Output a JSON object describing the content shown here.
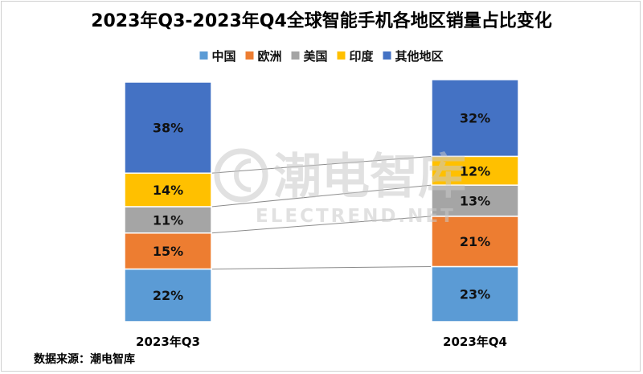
{
  "chart_data": {
    "type": "bar",
    "stacked": true,
    "title": "2023年Q3-2023年Q4全球智能手机各地区销量占比变化",
    "categories": [
      "2023年Q3",
      "2023年Q4"
    ],
    "unit": "%",
    "ylim": [
      0,
      100
    ],
    "legend_position": "top",
    "series": [
      {
        "name": "中国",
        "color": "#5b9bd5",
        "values": [
          22,
          23
        ],
        "labels": [
          "22%",
          "23%"
        ]
      },
      {
        "name": "欧洲",
        "color": "#ed7d31",
        "values": [
          15,
          21
        ],
        "labels": [
          "15%",
          "21%"
        ]
      },
      {
        "name": "美国",
        "color": "#a5a5a5",
        "values": [
          11,
          13
        ],
        "labels": [
          "11%",
          "13%"
        ]
      },
      {
        "name": "印度",
        "color": "#ffc000",
        "values": [
          14,
          12
        ],
        "labels": [
          "14%",
          "12%"
        ]
      },
      {
        "name": "其他地区",
        "color": "#4472c4",
        "values": [
          38,
          32
        ],
        "labels": [
          "38%",
          "32%"
        ]
      }
    ],
    "series_lines": true
  },
  "source_label": "数据来源：潮电智库",
  "watermark": {
    "main": "潮电智库",
    "sub": "ELECTREND.NET",
    "icon": "electrend-logo-icon"
  }
}
